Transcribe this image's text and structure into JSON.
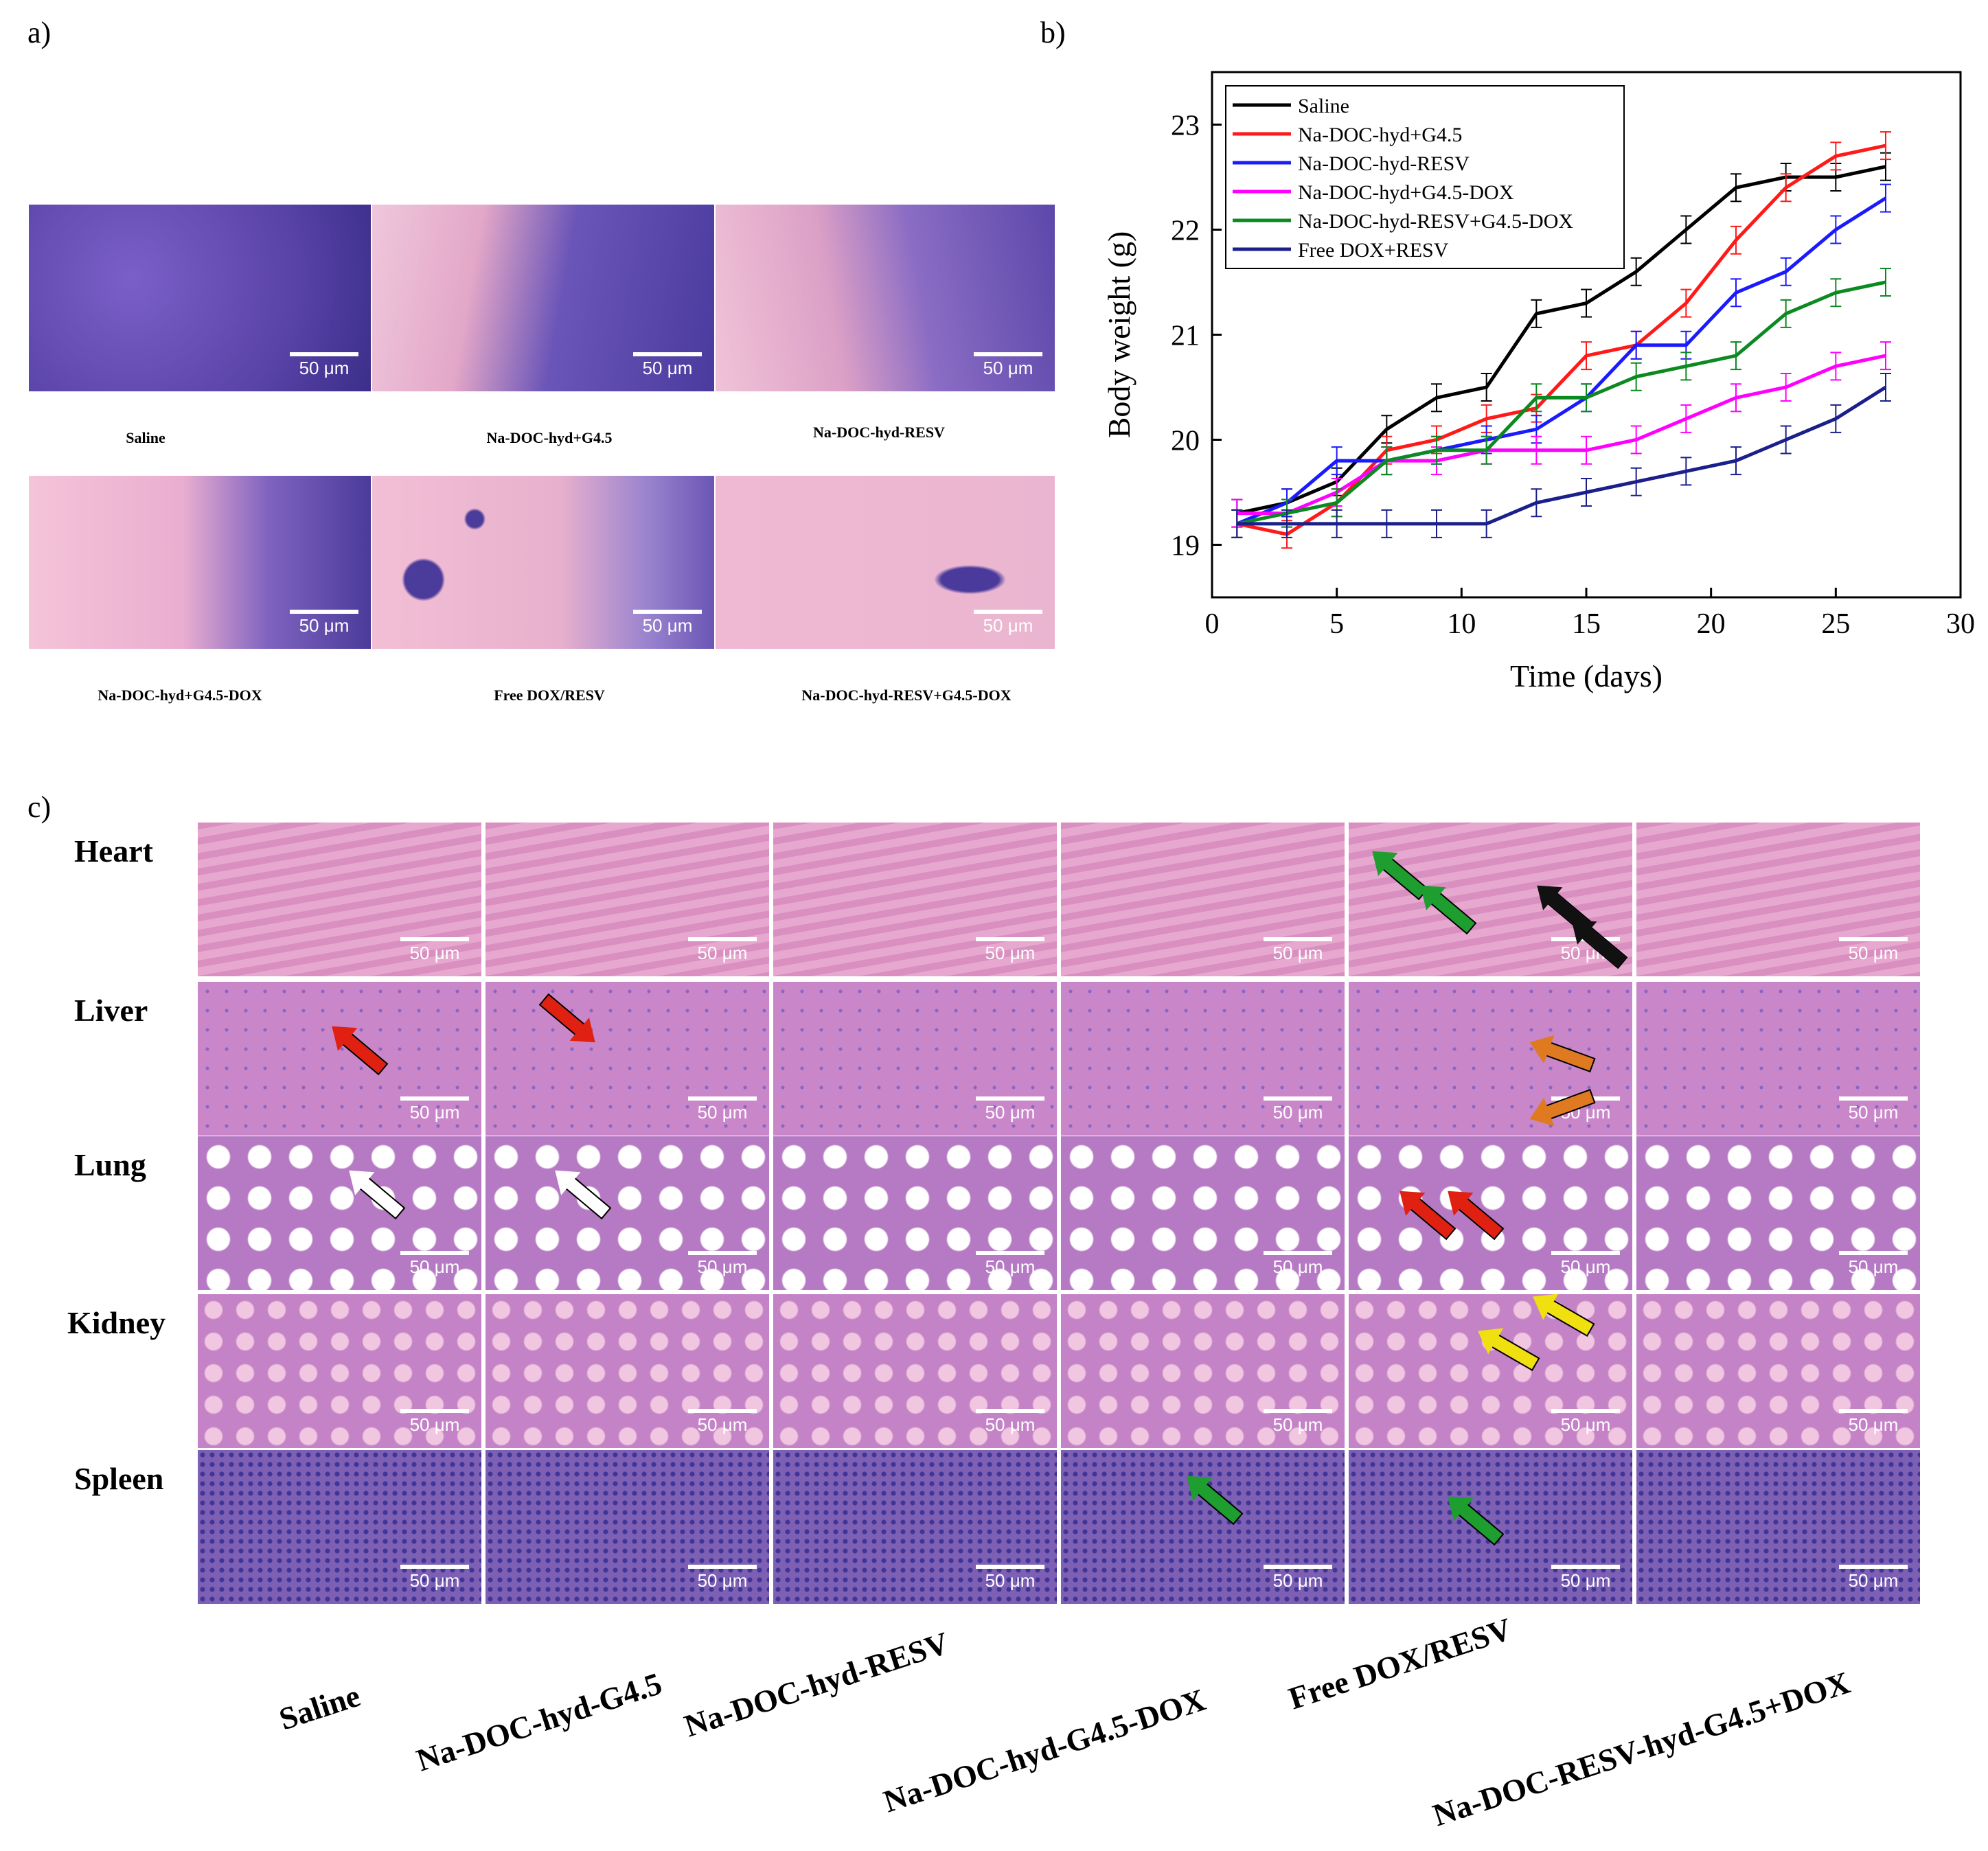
{
  "panel_labels": {
    "a": "a)",
    "b": "b)",
    "c": "c)"
  },
  "panel_a": {
    "scale_bar": "50 μm",
    "captions": [
      "Saline",
      "Na-DOC-hyd+G4.5",
      "Na-DOC-hyd-RESV",
      "Na-DOC-hyd+G4.5-DOX",
      "Free DOX/RESV",
      "Na-DOC-hyd-RESV+G4.5-DOX"
    ]
  },
  "chart_data": {
    "type": "line",
    "title": "",
    "xlabel": "Time (days)",
    "ylabel": "Body weight (g)",
    "xlim": [
      0,
      30
    ],
    "ylim": [
      18.5,
      23.5
    ],
    "xticks": [
      0,
      5,
      10,
      15,
      20,
      25,
      30
    ],
    "yticks": [
      19,
      20,
      21,
      22,
      23
    ],
    "legend_position": "top-left",
    "x": [
      1,
      3,
      5,
      7,
      9,
      11,
      13,
      15,
      17,
      19,
      21,
      23,
      25,
      27
    ],
    "series": [
      {
        "name": "Saline",
        "color": "#000000",
        "values": [
          19.3,
          19.4,
          19.6,
          20.1,
          20.4,
          20.5,
          21.2,
          21.3,
          21.6,
          22.0,
          22.4,
          22.5,
          22.5,
          22.6
        ]
      },
      {
        "name": "Na-DOC-hyd+G4.5",
        "color": "#ff1a1a",
        "values": [
          19.2,
          19.1,
          19.4,
          19.9,
          20.0,
          20.2,
          20.3,
          20.8,
          20.9,
          21.3,
          21.9,
          22.4,
          22.7,
          22.8
        ]
      },
      {
        "name": "Na-DOC-hyd-RESV",
        "color": "#1a1aff",
        "values": [
          19.2,
          19.4,
          19.8,
          19.8,
          19.9,
          20.0,
          20.1,
          20.4,
          20.9,
          20.9,
          21.4,
          21.6,
          22.0,
          22.3
        ]
      },
      {
        "name": "Na-DOC-hyd+G4.5-DOX",
        "color": "#ff00ff",
        "values": [
          19.3,
          19.3,
          19.5,
          19.8,
          19.8,
          19.9,
          19.9,
          19.9,
          20.0,
          20.2,
          20.4,
          20.5,
          20.7,
          20.8
        ]
      },
      {
        "name": "Na-DOC-hyd-RESV+G4.5-DOX",
        "color": "#0a8a20",
        "values": [
          19.2,
          19.3,
          19.4,
          19.8,
          19.9,
          19.9,
          20.4,
          20.4,
          20.6,
          20.7,
          20.8,
          21.2,
          21.4,
          21.5
        ]
      },
      {
        "name": "Free DOX+RESV",
        "color": "#1b1f8a",
        "values": [
          19.2,
          19.2,
          19.2,
          19.2,
          19.2,
          19.2,
          19.4,
          19.5,
          19.6,
          19.7,
          19.8,
          20.0,
          20.2,
          20.5
        ]
      }
    ]
  },
  "panel_c": {
    "scale_bar": "50 μm",
    "rows": [
      "Heart",
      "Liver",
      "Lung",
      "Kidney",
      "Spleen"
    ],
    "columns": [
      "Saline",
      "Na-DOC-hyd-G4.5",
      "Na-DOC-hyd-RESV",
      "Na-DOC-hyd-G4.5-DOX",
      "Free DOX/RESV",
      "Na-DOC-RESV-hyd-G4.5+DOX"
    ],
    "arrow_colors": {
      "green": "#1e9e2e",
      "black": "#111111",
      "red": "#e02010",
      "orange": "#e07a20",
      "white": "#ffffff",
      "yellow": "#f0e010"
    }
  }
}
